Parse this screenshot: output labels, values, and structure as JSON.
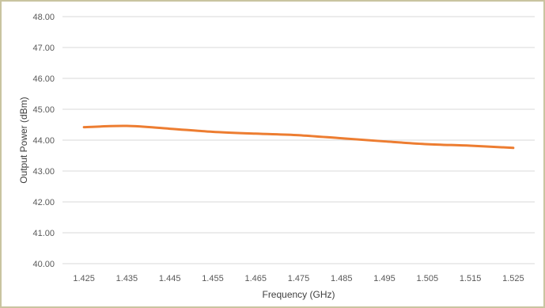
{
  "chart_data": {
    "type": "line",
    "title": "",
    "xlabel": "Frequency (GHz)",
    "ylabel": "Output Power (dBm)",
    "ylim": [
      40.0,
      48.0
    ],
    "yticks": [
      "40.00",
      "41.00",
      "42.00",
      "43.00",
      "44.00",
      "45.00",
      "46.00",
      "47.00",
      "48.00"
    ],
    "categories": [
      "1.425",
      "1.435",
      "1.445",
      "1.455",
      "1.465",
      "1.475",
      "1.485",
      "1.495",
      "1.505",
      "1.515",
      "1.525"
    ],
    "series": [
      {
        "values": [
          44.42,
          44.46,
          44.37,
          44.27,
          44.21,
          44.16,
          44.06,
          43.96,
          43.87,
          43.82,
          43.75
        ],
        "color": "#ed7d31"
      }
    ],
    "grid": true,
    "legend": "none",
    "colors": {
      "grid": "#d9d9d9",
      "frame": "#c9c4a0"
    }
  }
}
